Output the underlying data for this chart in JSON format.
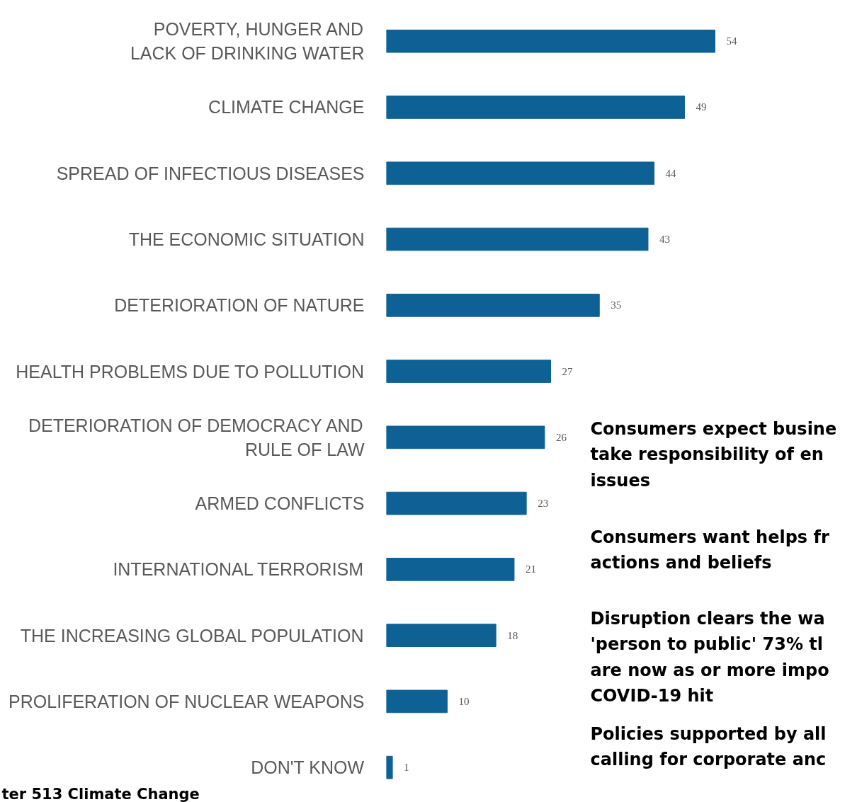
{
  "chart_data": {
    "type": "bar",
    "orientation": "horizontal",
    "data_labels": true,
    "color": "#0e6194",
    "categories": [
      "POVERTY, HUNGER AND\nLACK OF DRINKING WATER",
      "CLIMATE CHANGE",
      "SPREAD OF INFECTIOUS DISEASES",
      "THE ECONOMIC SITUATION",
      "DETERIORATION OF NATURE",
      "HEALTH PROBLEMS DUE TO POLLUTION",
      "DETERIORATION OF DEMOCRACY AND\nRULE OF LAW",
      "ARMED CONFLICTS",
      "INTERNATIONAL TERRORISM",
      "THE INCREASING GLOBAL POPULATION",
      "PROLIFERATION OF NUCLEAR WEAPONS",
      "DON'T KNOW"
    ],
    "values": [
      54,
      49,
      44,
      43,
      35,
      27,
      26,
      23,
      21,
      18,
      10,
      1
    ],
    "tick_labels": "y",
    "annotations": [
      "Consumers expect busine\ntake responsibility of en\nissues",
      "Consumers want helps fr\nactions and beliefs",
      "Disruption clears the wa\n'person to public' 73% tl\nare now as or more impo\nCOVID-19 hit",
      "Policies supported by all\ncalling for corporate anc",
      "ter 513 Climate Change"
    ]
  }
}
